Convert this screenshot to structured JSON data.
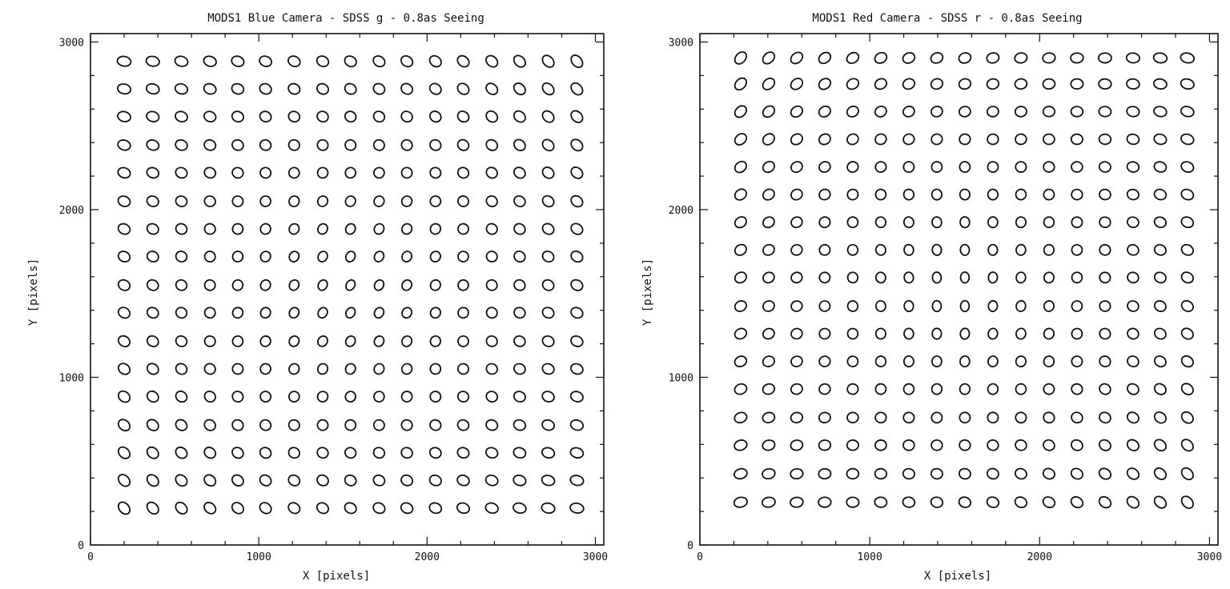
{
  "chart_data": [
    {
      "type": "scatter",
      "title": "MODS1 Blue Camera - SDSS g - 0.8as Seeing",
      "xlabel": "X [pixels]",
      "ylabel": "Y [pixels]",
      "xlim": [
        0,
        3050
      ],
      "ylim": [
        0,
        3050
      ],
      "xticks": [
        "0",
        "1000",
        "2000",
        "3000"
      ],
      "yticks": [
        "0",
        "1000",
        "2000",
        "3000"
      ],
      "grid": false,
      "marker": "ellipse",
      "x": [
        200,
        370,
        540,
        710,
        875,
        1040,
        1210,
        1380,
        1545,
        1715,
        1880,
        2050,
        2215,
        2385,
        2550,
        2720,
        2890
      ],
      "y": [
        220,
        385,
        550,
        715,
        885,
        1050,
        1215,
        1385,
        1550,
        1720,
        1885,
        2050,
        2220,
        2385,
        2555,
        2720,
        2885
      ]
    },
    {
      "type": "scatter",
      "title": "MODS1 Red Camera - SDSS r - 0.8as Seeing",
      "xlabel": "X [pixels]",
      "ylabel": "Y [pixels]",
      "xlim": [
        0,
        3050
      ],
      "ylim": [
        0,
        3050
      ],
      "xticks": [
        "0",
        "1000",
        "2000",
        "3000"
      ],
      "yticks": [
        "0",
        "1000",
        "2000",
        "3000"
      ],
      "grid": false,
      "marker": "ellipse",
      "x": [
        240,
        405,
        570,
        735,
        900,
        1065,
        1230,
        1395,
        1560,
        1725,
        1890,
        2055,
        2220,
        2385,
        2550,
        2710,
        2870
      ],
      "y": [
        255,
        425,
        595,
        760,
        930,
        1095,
        1260,
        1425,
        1595,
        1760,
        1925,
        2090,
        2255,
        2420,
        2585,
        2750,
        2905
      ]
    }
  ]
}
